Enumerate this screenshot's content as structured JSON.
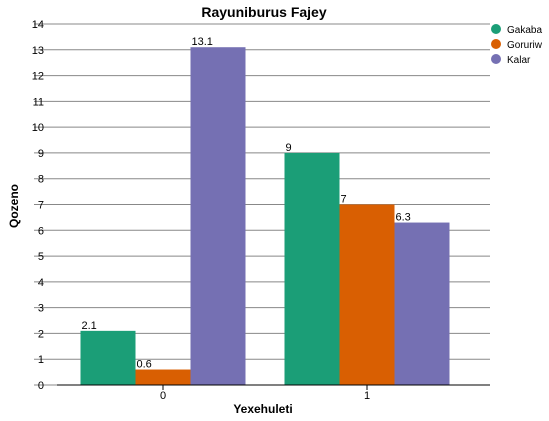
{
  "chart_data": {
    "type": "bar",
    "title": "Rayuniburus Fajey",
    "xlabel": "Yexehuleti",
    "ylabel": "Qozeno",
    "categories": [
      "0",
      "1"
    ],
    "ylim": [
      0,
      14
    ],
    "yticks": [
      0,
      1,
      2,
      3,
      4,
      5,
      6,
      7,
      8,
      9,
      10,
      11,
      12,
      13,
      14
    ],
    "grid": true,
    "legend_position": "top-right",
    "series": [
      {
        "name": "Gakaba",
        "color": "#1b9e77",
        "values": [
          2.1,
          9
        ],
        "labels": [
          "2.1",
          "9"
        ]
      },
      {
        "name": "Goruriw",
        "color": "#d95f02",
        "values": [
          0.6,
          7
        ],
        "labels": [
          "0.6",
          "7"
        ]
      },
      {
        "name": "Kalar",
        "color": "#7570b3",
        "values": [
          13.1,
          6.3
        ],
        "labels": [
          "13.1",
          "6.3"
        ]
      }
    ]
  }
}
